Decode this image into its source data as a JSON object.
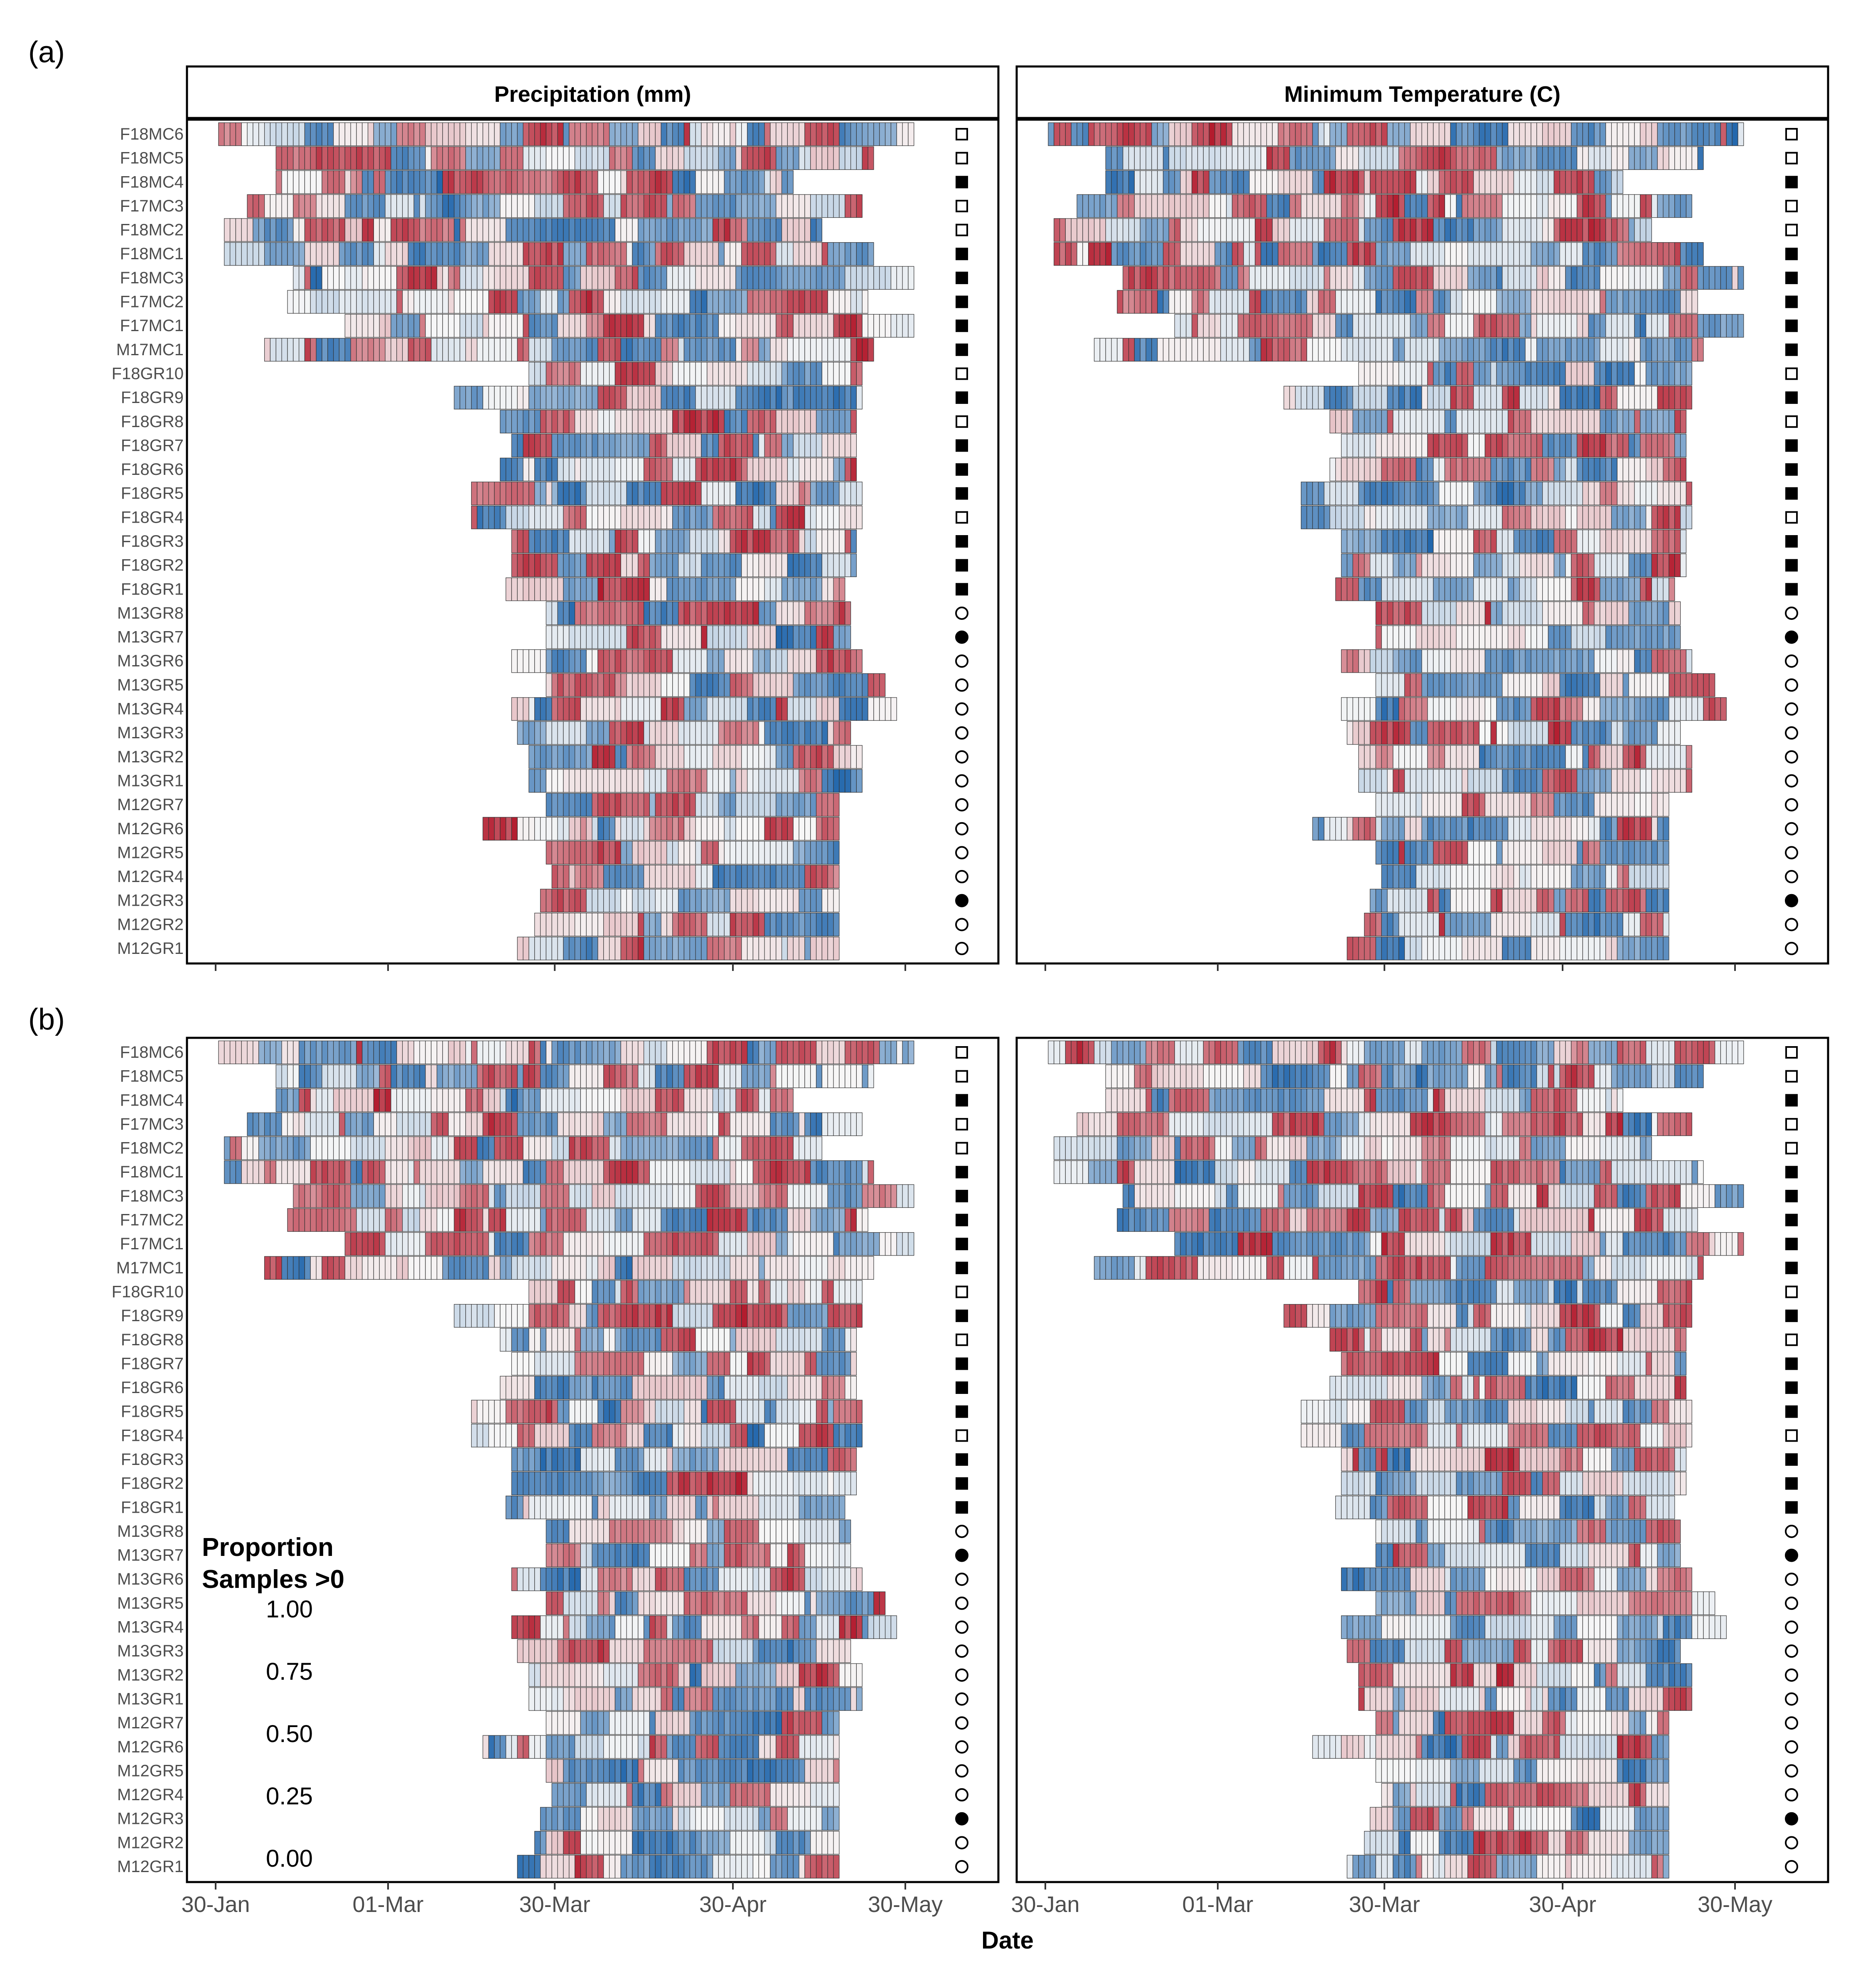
{
  "chart_data": {
    "type": "heatmap",
    "xlabel": "Date",
    "x_ticks": [
      "30-Jan",
      "01-Mar",
      "30-Mar",
      "30-Apr",
      "30-May"
    ],
    "x_tick_days": [
      0,
      30,
      59,
      90,
      120
    ],
    "facets": [
      "Precipitation (mm)",
      "Minimum Temperature (C)"
    ],
    "panel_tags": [
      "(a)",
      "(b)"
    ],
    "legend": {
      "title_lines": [
        "Proportion",
        "Samples >0"
      ],
      "labels": [
        "1.00",
        "0.75",
        "0.50",
        "0.25",
        "0.00"
      ],
      "low_color": "#2166ac",
      "mid_color": "#f7f7f7",
      "high_color": "#b2182b"
    },
    "rows": [
      {
        "id": "F18MC6",
        "marker": "square-open",
        "precip": [
          1,
          121
        ],
        "temp": [
          1,
          121
        ]
      },
      {
        "id": "F18MC5",
        "marker": "square-open",
        "precip": [
          11,
          114
        ],
        "temp": [
          11,
          114
        ]
      },
      {
        "id": "F18MC4",
        "marker": "square-filled",
        "precip": [
          11,
          100
        ],
        "temp": [
          11,
          100
        ]
      },
      {
        "id": "F17MC3",
        "marker": "square-open",
        "precip": [
          6,
          112
        ],
        "temp": [
          6,
          112
        ]
      },
      {
        "id": "F18MC2",
        "marker": "square-open",
        "precip": [
          2,
          105
        ],
        "temp": [
          2,
          105
        ]
      },
      {
        "id": "F18MC1",
        "marker": "square-filled",
        "precip": [
          2,
          114
        ],
        "temp": [
          2,
          114
        ]
      },
      {
        "id": "F18MC3",
        "marker": "square-filled",
        "precip": [
          14,
          121
        ],
        "temp": [
          14,
          121
        ]
      },
      {
        "id": "F17MC2",
        "marker": "square-filled",
        "precip": [
          13,
          113
        ],
        "temp": [
          13,
          113
        ]
      },
      {
        "id": "F17MC1",
        "marker": "square-filled",
        "precip": [
          23,
          121
        ],
        "temp": [
          23,
          121
        ]
      },
      {
        "id": "M17MC1",
        "marker": "square-filled",
        "precip": [
          9,
          114
        ],
        "temp": [
          9,
          114
        ]
      },
      {
        "id": "F18GR10",
        "marker": "square-open",
        "precip": [
          55,
          112
        ],
        "temp": [
          55,
          112
        ]
      },
      {
        "id": "F18GR9",
        "marker": "square-filled",
        "precip": [
          42,
          112
        ],
        "temp": [
          42,
          112
        ]
      },
      {
        "id": "F18GR8",
        "marker": "square-open",
        "precip": [
          50,
          111
        ],
        "temp": [
          50,
          111
        ]
      },
      {
        "id": "F18GR7",
        "marker": "square-filled",
        "precip": [
          52,
          111
        ],
        "temp": [
          52,
          111
        ]
      },
      {
        "id": "F18GR6",
        "marker": "square-filled",
        "precip": [
          50,
          111
        ],
        "temp": [
          50,
          111
        ]
      },
      {
        "id": "F18GR5",
        "marker": "square-filled",
        "precip": [
          45,
          112
        ],
        "temp": [
          45,
          112
        ]
      },
      {
        "id": "F18GR4",
        "marker": "square-open",
        "precip": [
          45,
          112
        ],
        "temp": [
          45,
          112
        ]
      },
      {
        "id": "F18GR3",
        "marker": "square-filled",
        "precip": [
          52,
          111
        ],
        "temp": [
          52,
          111
        ]
      },
      {
        "id": "F18GR2",
        "marker": "square-filled",
        "precip": [
          52,
          111
        ],
        "temp": [
          52,
          111
        ]
      },
      {
        "id": "F18GR1",
        "marker": "square-filled",
        "precip": [
          51,
          109
        ],
        "temp": [
          51,
          109
        ]
      },
      {
        "id": "M13GR8",
        "marker": "circle-open",
        "precip": [
          58,
          110
        ],
        "temp": [
          58,
          110
        ]
      },
      {
        "id": "M13GR7",
        "marker": "circle-filled",
        "precip": [
          58,
          110
        ],
        "temp": [
          58,
          110
        ]
      },
      {
        "id": "M13GR6",
        "marker": "circle-open",
        "precip": [
          52,
          112
        ],
        "temp": [
          52,
          112
        ]
      },
      {
        "id": "M13GR5",
        "marker": "circle-open",
        "precip": [
          58,
          116
        ],
        "temp": [
          58,
          116
        ]
      },
      {
        "id": "M13GR4",
        "marker": "circle-open",
        "precip": [
          52,
          118
        ],
        "temp": [
          52,
          118
        ]
      },
      {
        "id": "M13GR3",
        "marker": "circle-open",
        "precip": [
          53,
          110
        ],
        "temp": [
          53,
          110
        ]
      },
      {
        "id": "M13GR2",
        "marker": "circle-open",
        "precip": [
          55,
          112
        ],
        "temp": [
          55,
          112
        ]
      },
      {
        "id": "M13GR1",
        "marker": "circle-open",
        "precip": [
          55,
          112
        ],
        "temp": [
          55,
          112
        ]
      },
      {
        "id": "M12GR7",
        "marker": "circle-open",
        "precip": [
          58,
          108
        ],
        "temp": [
          58,
          108
        ]
      },
      {
        "id": "M12GR6",
        "marker": "circle-open",
        "precip": [
          47,
          108
        ],
        "temp": [
          47,
          108
        ]
      },
      {
        "id": "M12GR5",
        "marker": "circle-open",
        "precip": [
          58,
          108
        ],
        "temp": [
          58,
          108
        ]
      },
      {
        "id": "M12GR4",
        "marker": "circle-open",
        "precip": [
          59,
          108
        ],
        "temp": [
          59,
          108
        ]
      },
      {
        "id": "M12GR3",
        "marker": "circle-filled",
        "precip": [
          57,
          108
        ],
        "temp": [
          57,
          108
        ]
      },
      {
        "id": "M12GR2",
        "marker": "circle-open",
        "precip": [
          56,
          108
        ],
        "temp": [
          56,
          108
        ]
      },
      {
        "id": "M12GR1",
        "marker": "circle-open",
        "precip": [
          53,
          108
        ],
        "temp": [
          53,
          108
        ]
      }
    ]
  }
}
